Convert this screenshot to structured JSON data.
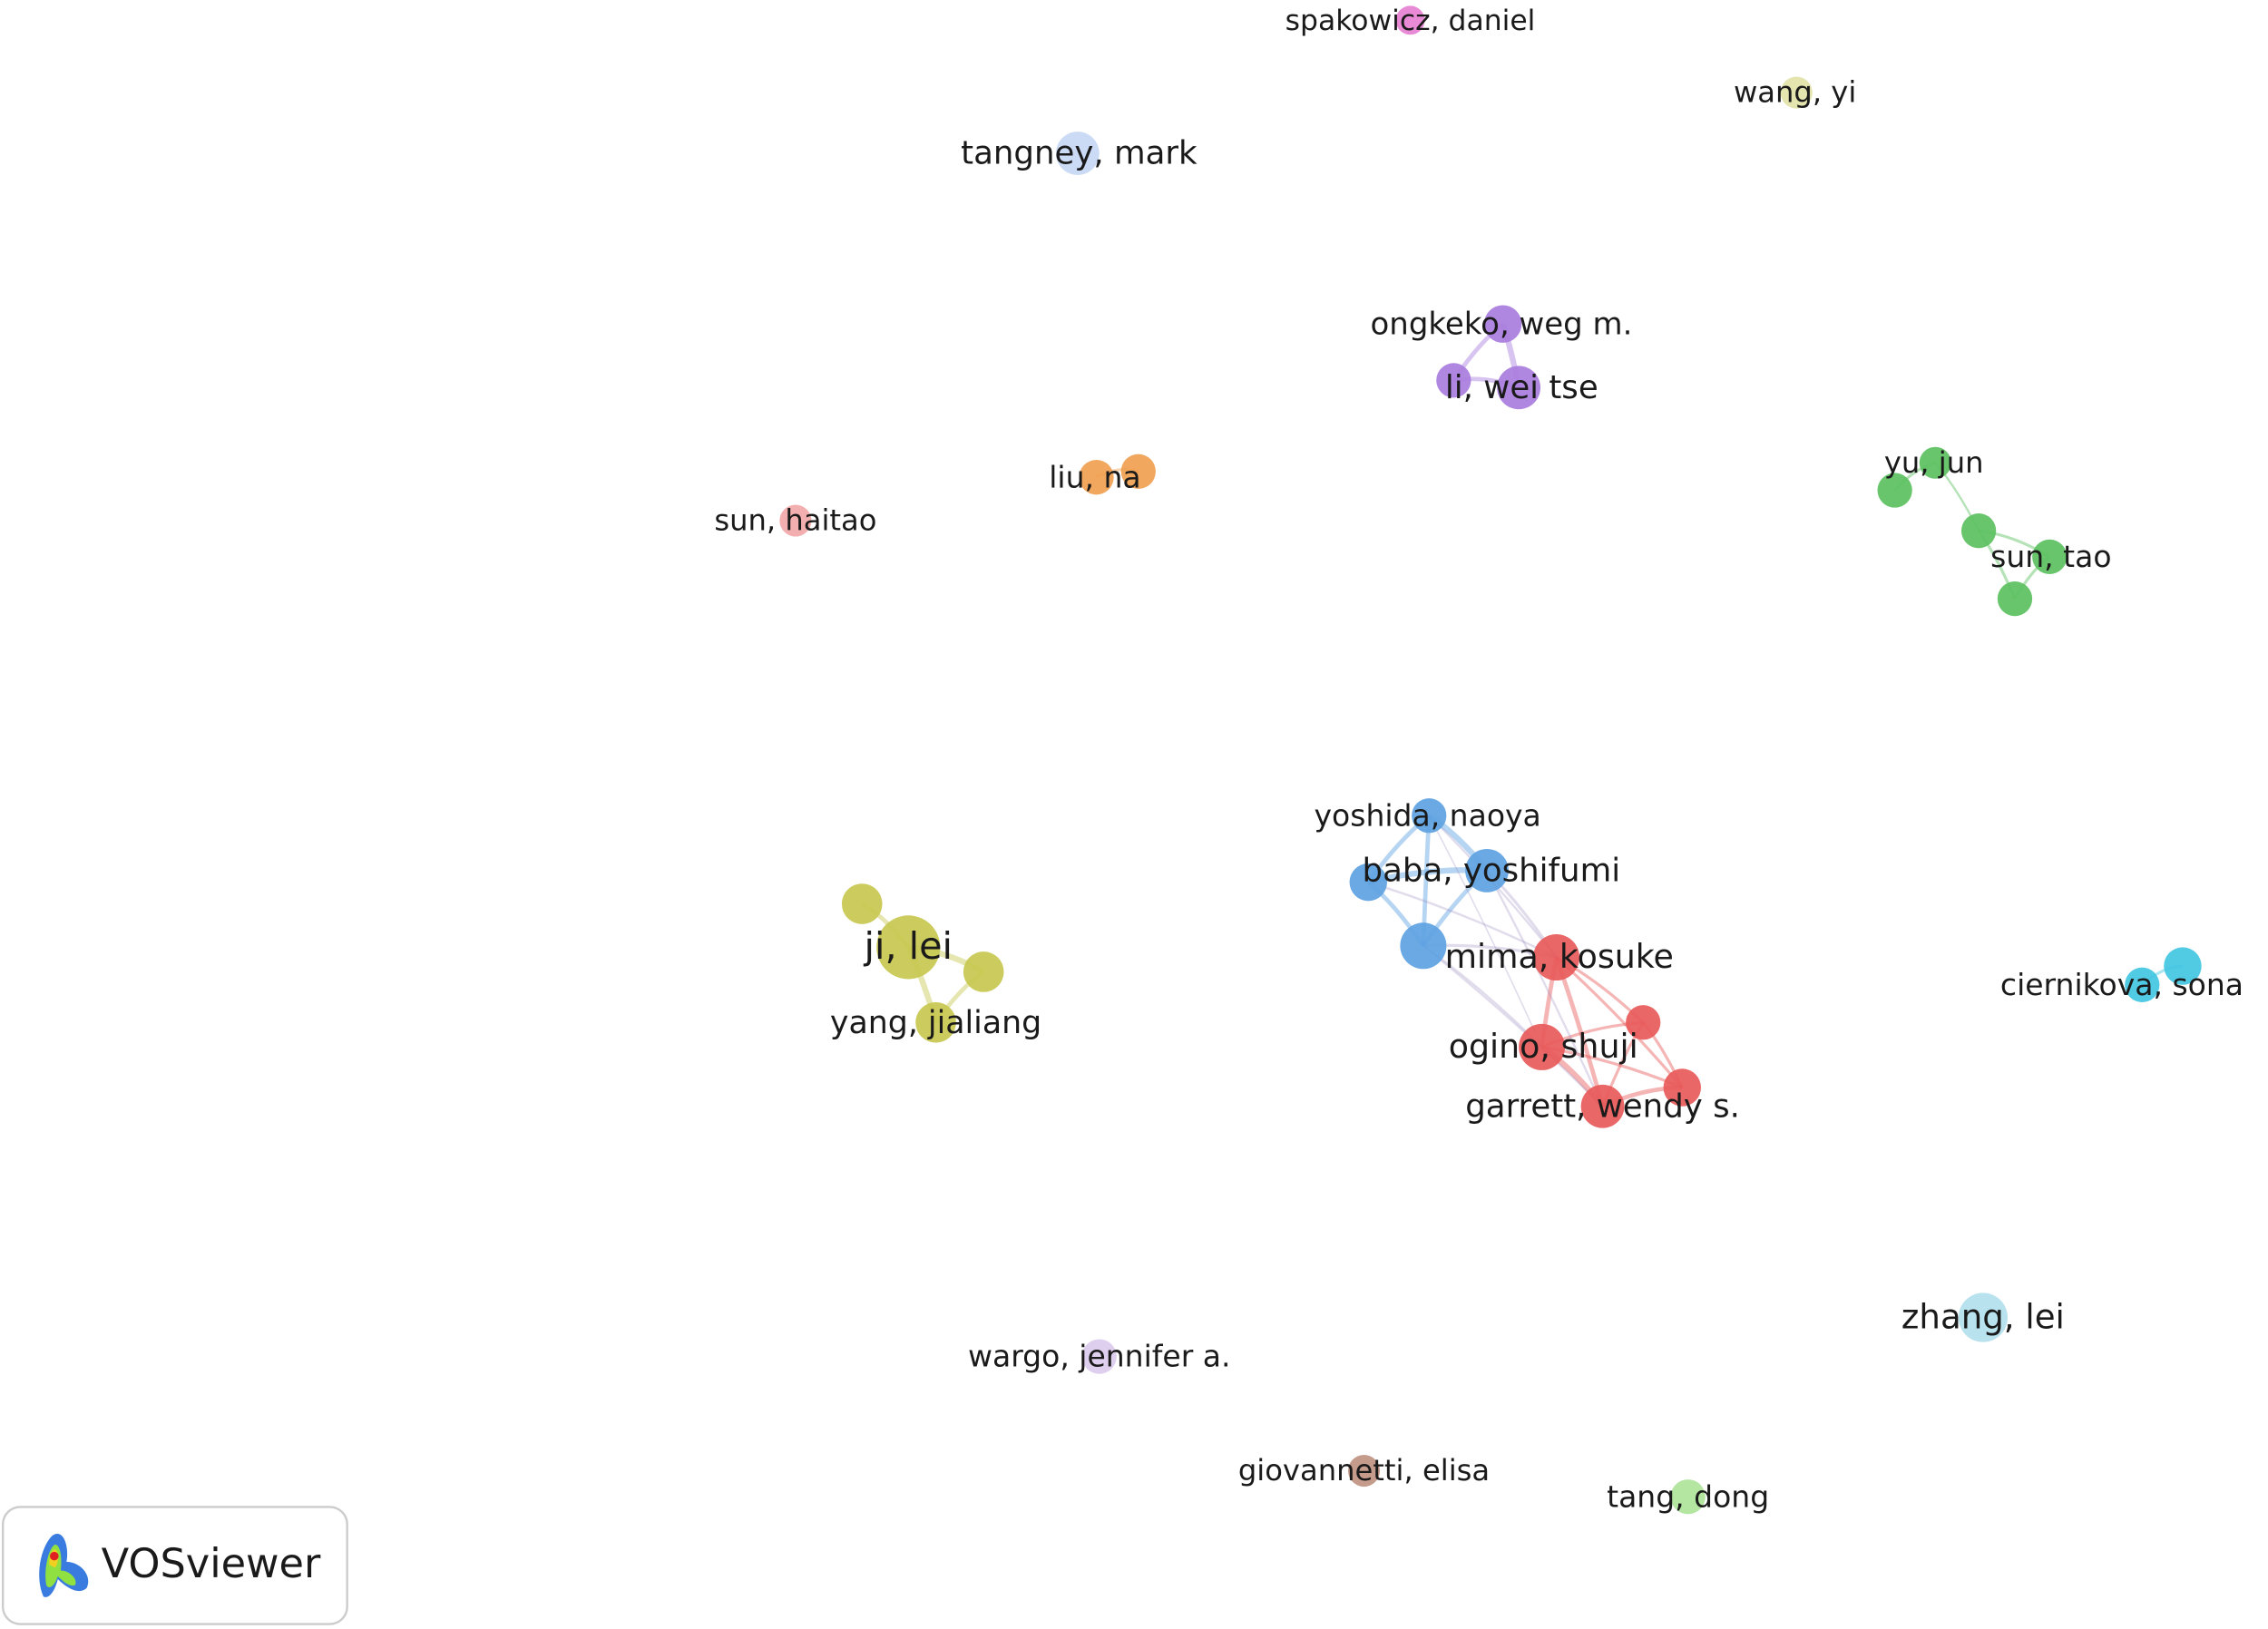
{
  "nodes": [
    {
      "label": "spakowicz, daniel"
    },
    {
      "label": "wang, yi"
    },
    {
      "label": "tangney, mark"
    },
    {
      "label": "ongkeko, weg m."
    },
    {
      "label": "li, wei tse"
    },
    {
      "label": "liu, na"
    },
    {
      "label": "sun, haitao"
    },
    {
      "label": "yu, jun"
    },
    {
      "label": "sun, tao"
    },
    {
      "label": "yoshida, naoya"
    },
    {
      "label": "baba, yoshifumi"
    },
    {
      "label": "ji, lei"
    },
    {
      "label": "yang, jialiang"
    },
    {
      "label": "mima, kosuke"
    },
    {
      "label": "ogino, shuji"
    },
    {
      "label": "garrett, wendy s."
    },
    {
      "label": "ciernikova, sona"
    },
    {
      "label": "zhang, lei"
    },
    {
      "label": "wargo, jennifer a."
    },
    {
      "label": "giovannetti, elisa"
    },
    {
      "label": "tang, dong"
    }
  ],
  "logo": {
    "text": "VOSviewer"
  }
}
